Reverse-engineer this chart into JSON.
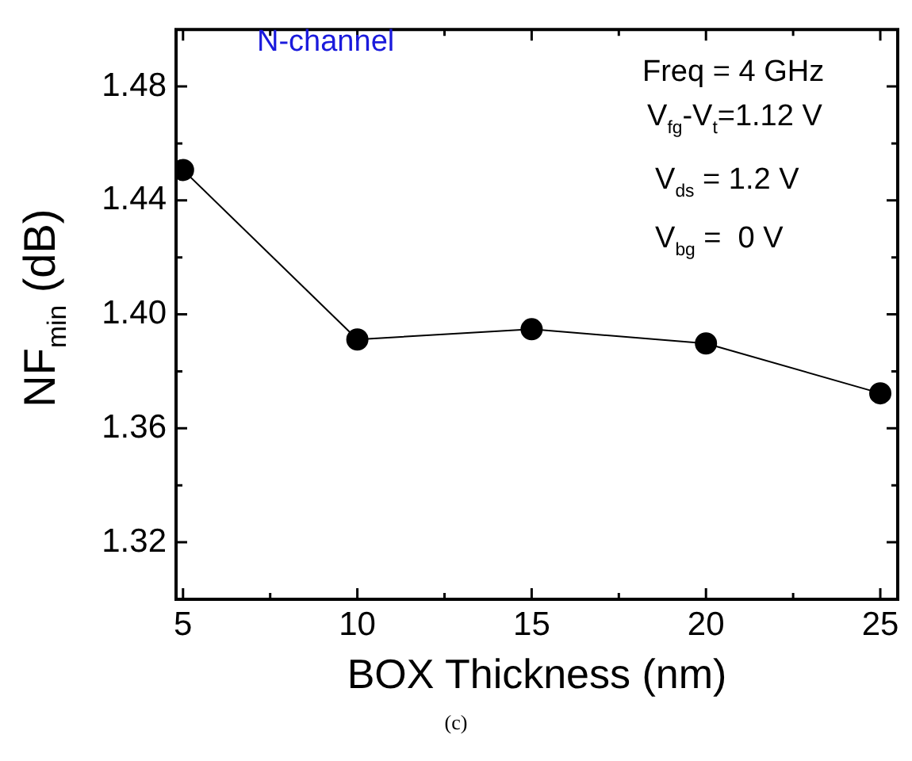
{
  "chart_data": {
    "type": "line",
    "xlabel": "BOX Thickness (nm)",
    "ylabel": "NF$_{min}$ (dB)",
    "x": [
      5,
      10,
      15,
      20,
      25
    ],
    "series": [
      {
        "color": "#000000",
        "values": [
          1.4507,
          1.3912,
          1.3948,
          1.3898,
          1.3723
        ]
      }
    ],
    "xlim": [
      4.8,
      25.5
    ],
    "xticks": [
      5,
      {
        "value": 7.5,
        "label": null
      },
      10,
      {
        "value": 12.5,
        "label": null
      },
      15,
      {
        "value": 17.5,
        "label": null
      },
      20,
      {
        "value": 22.5,
        "label": null
      },
      25
    ],
    "ylim": [
      1.3,
      1.5
    ],
    "yticks": [
      {
        "value": 1.3,
        "label": null
      },
      {
        "value": 1.32,
        "label": "1.32"
      },
      {
        "value": 1.34,
        "label": null
      },
      {
        "value": 1.36,
        "label": "1.36"
      },
      {
        "value": 1.38,
        "label": null
      },
      {
        "value": 1.4,
        "label": "1.40"
      },
      {
        "value": 1.42,
        "label": null
      },
      {
        "value": 1.44,
        "label": "1.44"
      },
      {
        "value": 1.46,
        "label": null
      },
      {
        "value": 1.48,
        "label": "1.48"
      }
    ],
    "marker": "circle",
    "line_style": "solid",
    "grid": false,
    "legend": false,
    "annotations": [
      "N-channel",
      "Freq = 4 GHz",
      "V$_{fg}$-V$_{t}$=1.12 V",
      "V$_{ds}$ = 1.2 V",
      "V$_{bg}$ =  0 V",
      "(c)"
    ]
  }
}
